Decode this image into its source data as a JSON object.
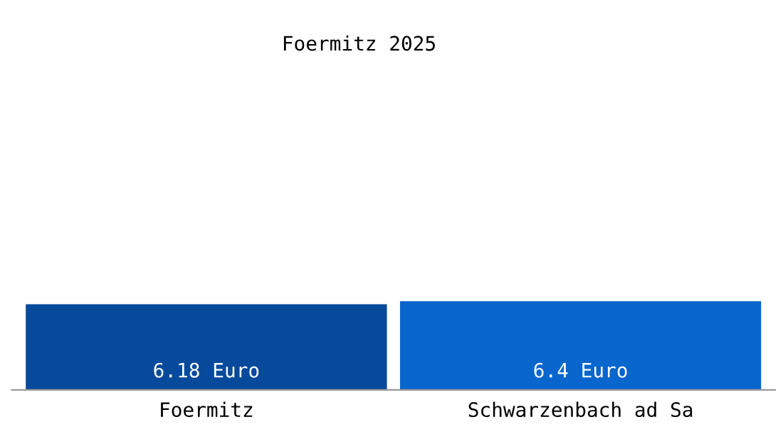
{
  "chart_data": {
    "type": "bar",
    "title": "Foermitz 2025",
    "categories": [
      "Foermitz",
      "Schwarzenbach ad Sa"
    ],
    "values": [
      6.18,
      6.4
    ],
    "colors": [
      "#074a9b",
      "#0966cc"
    ],
    "value_labels": [
      "6.18 Euro",
      "6.4 Euro"
    ],
    "grid": false,
    "legend": false
  }
}
